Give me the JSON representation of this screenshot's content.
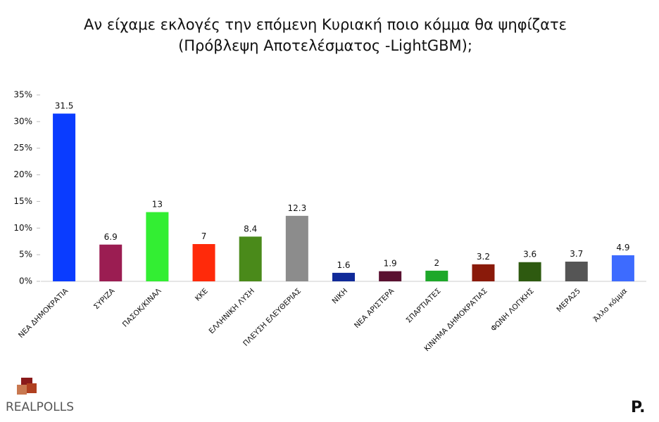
{
  "chart_data": {
    "type": "bar",
    "title": "Αν είχαμε εκλογές την επόμενη Κυριακή ποιο κόμμα θα ψηφίζατε",
    "subtitle": "(Πρόβλεψη Αποτελέσματος -LightGBM);",
    "categories": [
      "ΝΕΑ ΔΗΜΟΚΡΑΤΙΑ",
      "ΣΥΡΙΖΑ",
      "ΠΑΣΟΚ/ΚΙΝΑΛ",
      "ΚΚΕ",
      "ΕΛΛΗΝΙΚΗ ΛΥΣΗ",
      "ΠΛΕΥΣΗ ΕΛΕΥΘΕΡΙΑΣ",
      "ΝΙΚΗ",
      "ΝΕΑ ΑΡΙΣΤΕΡΑ",
      "ΣΠΑΡΤΙΑΤΕΣ",
      "ΚΙΝΗΜΑ ΔΗΜΟΚΡΑΤΙΑΣ",
      "ΦΩΝΗ ΛΟΓΙΚΗΣ",
      "ΜΕΡΑ25",
      "Άλλο κόμμα"
    ],
    "values": [
      31.5,
      6.9,
      13,
      7,
      8.4,
      12.3,
      1.6,
      1.9,
      2,
      3.2,
      3.6,
      3.7,
      4.9
    ],
    "colors": [
      "#0a3cff",
      "#9b1d52",
      "#33ee33",
      "#ff2a0a",
      "#4a8a1a",
      "#8c8c8c",
      "#102a99",
      "#5a1030",
      "#1ea82a",
      "#8a1a0a",
      "#2e5a10",
      "#555555",
      "#3d6bff"
    ],
    "ylim": [
      0,
      35
    ],
    "yticks": [
      {
        "value": 0,
        "label": "0%"
      },
      {
        "value": 5,
        "label": "5%"
      },
      {
        "value": 10,
        "label": "10%"
      },
      {
        "value": 15,
        "label": "15%"
      },
      {
        "value": 20,
        "label": "20%"
      },
      {
        "value": 25,
        "label": "25%"
      },
      {
        "value": 30,
        "label": "30%"
      },
      {
        "value": 35,
        "label": "35%"
      }
    ],
    "grid": false
  },
  "logo": {
    "left": "REALPOLLS",
    "right": "P."
  }
}
